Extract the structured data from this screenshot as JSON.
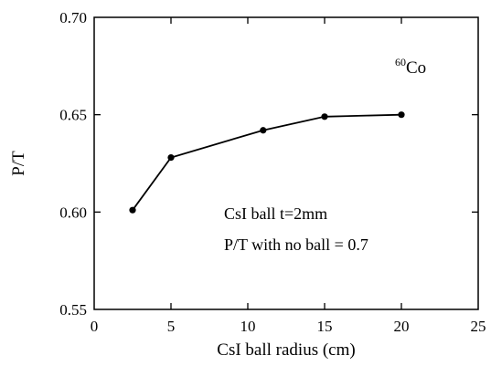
{
  "chart_data": {
    "type": "line",
    "xlabel": "CsI ball radius (cm)",
    "ylabel": "P/T",
    "xlim": [
      0,
      25
    ],
    "ylim": [
      0.55,
      0.7
    ],
    "xticks": [
      0,
      5,
      10,
      15,
      20,
      25
    ],
    "yticks": [
      0.55,
      0.6,
      0.65,
      0.7
    ],
    "xtick_labels": [
      "0",
      "5",
      "10",
      "15",
      "20",
      "25"
    ],
    "ytick_labels": [
      "0.55",
      "0.60",
      "0.65",
      "0.70"
    ],
    "grid": false,
    "series": [
      {
        "x": [
          2.5,
          5,
          11,
          15,
          20
        ],
        "y": [
          0.601,
          0.628,
          0.642,
          0.649,
          0.65
        ]
      }
    ],
    "annotations": {
      "isotope_mass": "60",
      "isotope_symbol": "Co",
      "line1": "CsI ball t=2mm",
      "line2": "P/T with no ball = 0.7"
    }
  }
}
